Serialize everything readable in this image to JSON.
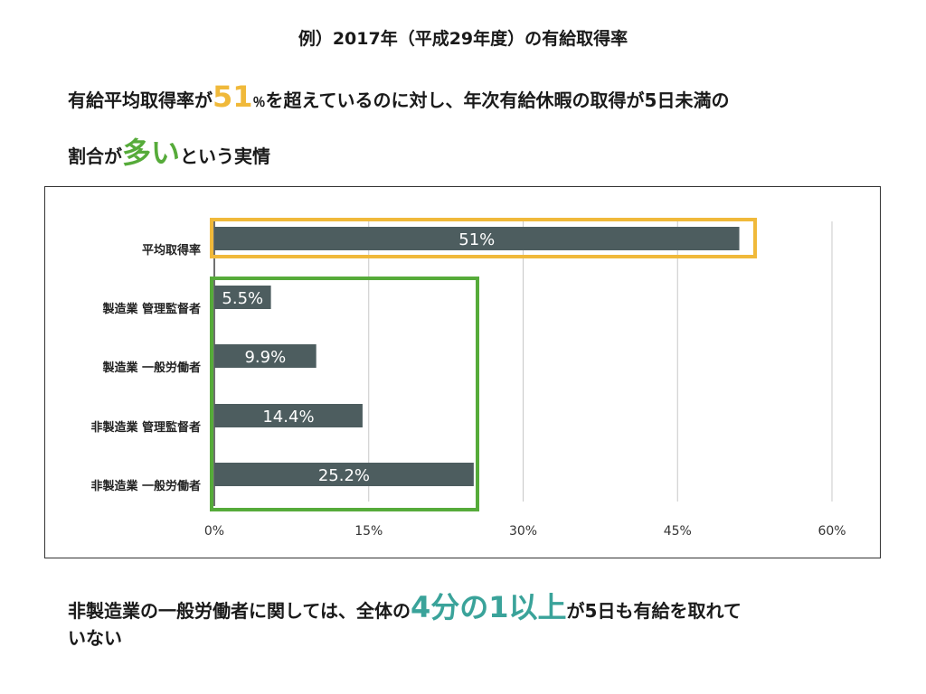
{
  "title": "例）2017年（平成29年度）の有給取得率",
  "headline": {
    "part1": "有給平均取得率が",
    "highlight1": "51",
    "part2": "％",
    "part3": "を超えているのに対し、年次有給休暇の取得が5日未満の",
    "part4": "割合が",
    "highlight2": "多い",
    "part5": "という実情"
  },
  "footer": {
    "part1": "非製造業の一般労働者に関しては、全体の",
    "highlight": "4分の1以上",
    "part2": "が5日も有給を取れて",
    "part3": "いない"
  },
  "colors": {
    "bar": "#4d5d5f",
    "yellow": "#f0b93a",
    "green": "#56ab3a",
    "teal": "#3aa39a",
    "grid": "#c8c8c8"
  },
  "chart_data": {
    "type": "bar",
    "orientation": "horizontal",
    "categories": [
      "平均取得率",
      "製造業 管理監督者",
      "製造業 一般労働者",
      "非製造業 管理監督者",
      "非製造業 一般労働者"
    ],
    "values": [
      51,
      5.5,
      9.9,
      14.4,
      25.2
    ],
    "labels": [
      "51%",
      "5.5%",
      "9.9%",
      "14.4%",
      "25.2%"
    ],
    "xlim": [
      0,
      60
    ],
    "xticks": [
      0,
      15,
      30,
      45,
      60
    ],
    "xtick_labels": [
      "0%",
      "15%",
      "30%",
      "45%",
      "60%"
    ],
    "grid": true,
    "highlights": [
      {
        "color": "yellow",
        "rows": [
          0
        ]
      },
      {
        "color": "green",
        "rows": [
          1,
          2,
          3,
          4
        ]
      }
    ]
  }
}
